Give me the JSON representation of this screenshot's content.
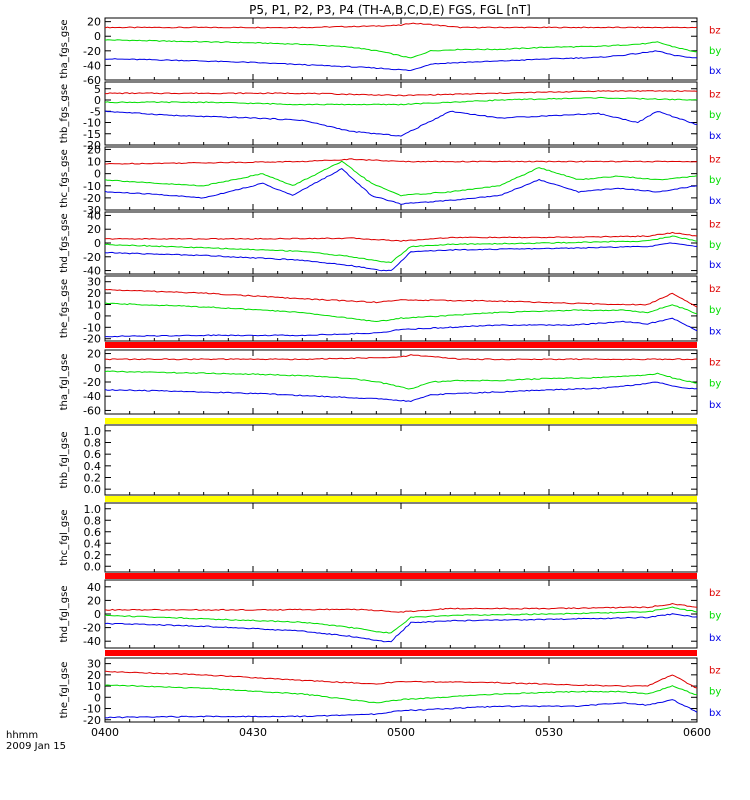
{
  "title": "P5, P1, P2, P3, P4 (TH-A,B,C,D,E) FGS, FGL [nT]",
  "colors": {
    "bx": "#0000e6",
    "by": "#00dd00",
    "bz": "#dd0000",
    "bar_red": "#ff0000",
    "bar_yellow": "#ffff00",
    "axis": "#000000"
  },
  "footer": {
    "x_unit": "hhmm",
    "date": "2009 Jan 15"
  },
  "chart_data": [
    {
      "type": "line",
      "ylabel": "tha_fgs_gse",
      "ylim": [
        -60,
        25
      ],
      "yticks": [
        "20",
        "0",
        "-20",
        "-40",
        "-60"
      ],
      "xlim": [
        0,
        120
      ],
      "xticks": [
        "0400",
        "0430",
        "0500",
        "0530",
        "0600"
      ],
      "series": [
        {
          "name": "bz",
          "x": [
            0,
            15,
            30,
            40,
            55,
            60,
            62,
            66,
            72,
            80,
            90,
            100,
            110,
            115,
            120
          ],
          "values": [
            12,
            12,
            12,
            12,
            14,
            15,
            18,
            16,
            12,
            12,
            12,
            12,
            12,
            12,
            12
          ]
        },
        {
          "name": "by",
          "x": [
            0,
            15,
            30,
            40,
            50,
            56,
            60,
            62,
            66,
            72,
            80,
            90,
            100,
            105,
            110,
            112,
            115,
            120
          ],
          "values": [
            -5,
            -7,
            -9,
            -11,
            -15,
            -21,
            -27,
            -30,
            -20,
            -18,
            -18,
            -15,
            -14,
            -12,
            -10,
            -8,
            -14,
            -22
          ]
        },
        {
          "name": "bx",
          "x": [
            0,
            15,
            30,
            40,
            50,
            56,
            60,
            62,
            66,
            72,
            80,
            90,
            100,
            105,
            110,
            112,
            115,
            120
          ],
          "values": [
            -31,
            -33,
            -36,
            -39,
            -42,
            -44,
            -46,
            -47,
            -38,
            -36,
            -34,
            -31,
            -29,
            -26,
            -22,
            -20,
            -26,
            -30
          ]
        }
      ]
    },
    {
      "type": "line",
      "ylabel": "thb_fgs_gse",
      "ylim": [
        -20,
        8
      ],
      "yticks": [
        "5",
        "0",
        "-5",
        "-10",
        "-15",
        "-20"
      ],
      "xlim": [
        0,
        120
      ],
      "xticks": [
        "0400",
        "0430",
        "0500",
        "0530",
        "0600"
      ],
      "series": [
        {
          "name": "bz",
          "x": [
            0,
            20,
            40,
            60,
            80,
            100,
            120
          ],
          "values": [
            3,
            3,
            3,
            2,
            3,
            4,
            4
          ]
        },
        {
          "name": "by",
          "x": [
            0,
            20,
            40,
            60,
            80,
            100,
            120
          ],
          "values": [
            -1,
            -1,
            -2,
            -2,
            0,
            1,
            0
          ]
        },
        {
          "name": "bx",
          "x": [
            0,
            15,
            30,
            40,
            50,
            60,
            70,
            80,
            90,
            100,
            108,
            112,
            120
          ],
          "values": [
            -5,
            -7,
            -8,
            -9,
            -14,
            -16,
            -5,
            -8,
            -7,
            -6,
            -10,
            -5,
            -11
          ]
        }
      ]
    },
    {
      "type": "line",
      "ylabel": "thc_fgs_gse",
      "ylim": [
        -30,
        22
      ],
      "yticks": [
        "20",
        "10",
        "0",
        "-10",
        "-20",
        "-30"
      ],
      "xlim": [
        0,
        120
      ],
      "xticks": [
        "0400",
        "0430",
        "0500",
        "0530",
        "0600"
      ],
      "series": [
        {
          "name": "bz",
          "x": [
            0,
            20,
            40,
            50,
            60,
            80,
            100,
            120
          ],
          "values": [
            8,
            9,
            10,
            12,
            10,
            10,
            10,
            10
          ]
        },
        {
          "name": "by",
          "x": [
            0,
            10,
            20,
            32,
            38,
            48,
            54,
            60,
            70,
            80,
            88,
            96,
            104,
            112,
            120
          ],
          "values": [
            -5,
            -8,
            -10,
            0,
            -10,
            10,
            -8,
            -18,
            -15,
            -10,
            5,
            -5,
            -2,
            -5,
            -2
          ]
        },
        {
          "name": "bx",
          "x": [
            0,
            10,
            20,
            32,
            38,
            48,
            54,
            60,
            70,
            80,
            88,
            96,
            104,
            112,
            120
          ],
          "values": [
            -15,
            -17,
            -20,
            -8,
            -18,
            4,
            -18,
            -25,
            -22,
            -18,
            -5,
            -15,
            -12,
            -15,
            -10
          ]
        }
      ]
    },
    {
      "type": "line",
      "ylabel": "thd_fgs_gse",
      "ylim": [
        -45,
        45
      ],
      "yticks": [
        "40",
        "20",
        "0",
        "-20",
        "-40"
      ],
      "xlim": [
        0,
        120
      ],
      "xticks": [
        "0400",
        "0430",
        "0500",
        "0530",
        "0600"
      ],
      "series": [
        {
          "name": "bz",
          "x": [
            0,
            30,
            50,
            60,
            70,
            90,
            110,
            115,
            120
          ],
          "values": [
            6,
            6,
            7,
            3,
            8,
            8,
            10,
            15,
            10
          ]
        },
        {
          "name": "by",
          "x": [
            0,
            20,
            40,
            50,
            56,
            58,
            62,
            70,
            90,
            110,
            115,
            120
          ],
          "values": [
            -2,
            -7,
            -12,
            -20,
            -27,
            -28,
            -5,
            -2,
            0,
            3,
            10,
            3
          ]
        },
        {
          "name": "bx",
          "x": [
            0,
            20,
            40,
            50,
            56,
            58,
            62,
            70,
            90,
            110,
            115,
            120
          ],
          "values": [
            -14,
            -18,
            -25,
            -33,
            -40,
            -40,
            -13,
            -10,
            -8,
            -5,
            0,
            -5
          ]
        }
      ]
    },
    {
      "type": "line",
      "ylabel": "the_fgs_gse",
      "ylim": [
        -22,
        35
      ],
      "yticks": [
        "30",
        "20",
        "10",
        "0",
        "-10",
        "-20"
      ],
      "xlim": [
        0,
        120
      ],
      "xticks": [
        "0400",
        "0430",
        "0500",
        "0530",
        "0600"
      ],
      "series": [
        {
          "name": "bz",
          "x": [
            0,
            20,
            40,
            55,
            60,
            80,
            95,
            105,
            110,
            115,
            120
          ],
          "values": [
            23,
            20,
            15,
            12,
            14,
            13,
            11,
            10,
            10,
            20,
            8
          ]
        },
        {
          "name": "by",
          "x": [
            0,
            20,
            40,
            55,
            60,
            80,
            95,
            105,
            110,
            115,
            120
          ],
          "values": [
            11,
            8,
            3,
            -5,
            -2,
            3,
            5,
            5,
            3,
            10,
            2
          ]
        },
        {
          "name": "bx",
          "x": [
            0,
            20,
            40,
            55,
            60,
            80,
            95,
            105,
            110,
            115,
            120
          ],
          "values": [
            -18,
            -17,
            -17,
            -15,
            -12,
            -8,
            -8,
            -5,
            -7,
            -2,
            -13
          ]
        }
      ]
    },
    {
      "type": "line",
      "ylabel": "tha_fgl_gse",
      "ylim": [
        -65,
        25
      ],
      "yticks": [
        "20",
        "0",
        "-20",
        "-40",
        "-60"
      ],
      "xlim": [
        0,
        120
      ],
      "xticks": [
        "0400",
        "0430",
        "0500",
        "0530",
        "0600"
      ],
      "series": [
        {
          "name": "bz",
          "x": [
            0,
            15,
            30,
            40,
            55,
            60,
            62,
            66,
            72,
            80,
            90,
            100,
            110,
            115,
            120
          ],
          "values": [
            12,
            12,
            12,
            12,
            14,
            15,
            18,
            16,
            12,
            12,
            12,
            12,
            12,
            12,
            12
          ]
        },
        {
          "name": "by",
          "x": [
            0,
            15,
            30,
            40,
            50,
            56,
            60,
            62,
            66,
            72,
            80,
            90,
            100,
            105,
            110,
            112,
            115,
            120
          ],
          "values": [
            -5,
            -7,
            -9,
            -11,
            -15,
            -21,
            -27,
            -30,
            -20,
            -18,
            -18,
            -15,
            -14,
            -12,
            -10,
            -8,
            -14,
            -22
          ]
        },
        {
          "name": "bx",
          "x": [
            0,
            15,
            30,
            40,
            50,
            56,
            60,
            62,
            66,
            72,
            80,
            90,
            100,
            105,
            110,
            112,
            115,
            120
          ],
          "values": [
            -31,
            -33,
            -36,
            -39,
            -42,
            -44,
            -46,
            -47,
            -38,
            -36,
            -34,
            -31,
            -29,
            -26,
            -22,
            -20,
            -26,
            -30
          ]
        }
      ]
    },
    {
      "type": "line",
      "ylabel": "thb_fgl_gse",
      "ylim": [
        -0.1,
        1.1
      ],
      "yticks": [
        "1.0",
        "0.8",
        "0.6",
        "0.4",
        "0.2",
        "0.0"
      ],
      "xlim": [
        0,
        120
      ],
      "xticks": [
        "0400",
        "0430",
        "0500",
        "0530",
        "0600"
      ],
      "series": []
    },
    {
      "type": "line",
      "ylabel": "thc_fgl_gse",
      "ylim": [
        -0.1,
        1.1
      ],
      "yticks": [
        "1.0",
        "0.8",
        "0.6",
        "0.4",
        "0.2",
        "0.0"
      ],
      "xlim": [
        0,
        120
      ],
      "xticks": [
        "0400",
        "0430",
        "0500",
        "0530",
        "0600"
      ],
      "series": []
    },
    {
      "type": "line",
      "ylabel": "thd_fgl_gse",
      "ylim": [
        -50,
        50
      ],
      "yticks": [
        "40",
        "20",
        "0",
        "-20",
        "-40"
      ],
      "xlim": [
        0,
        120
      ],
      "xticks": [
        "0400",
        "0430",
        "0500",
        "0530",
        "0600"
      ],
      "series": [
        {
          "name": "bz",
          "x": [
            0,
            30,
            50,
            60,
            70,
            90,
            110,
            115,
            120
          ],
          "values": [
            6,
            6,
            7,
            3,
            8,
            8,
            10,
            15,
            10
          ]
        },
        {
          "name": "by",
          "x": [
            0,
            20,
            40,
            50,
            56,
            58,
            62,
            70,
            90,
            110,
            115,
            120
          ],
          "values": [
            -2,
            -7,
            -12,
            -20,
            -27,
            -28,
            -5,
            -2,
            0,
            3,
            10,
            3
          ]
        },
        {
          "name": "bx",
          "x": [
            0,
            20,
            40,
            50,
            56,
            58,
            62,
            70,
            90,
            110,
            115,
            120
          ],
          "values": [
            -14,
            -18,
            -25,
            -33,
            -40,
            -40,
            -13,
            -10,
            -8,
            -5,
            0,
            -5
          ]
        }
      ]
    },
    {
      "type": "line",
      "ylabel": "the_fgl_gse",
      "ylim": [
        -22,
        35
      ],
      "yticks": [
        "30",
        "20",
        "10",
        "0",
        "-10",
        "-20"
      ],
      "xlim": [
        0,
        120
      ],
      "xticks": [
        "0400",
        "0430",
        "0500",
        "0530",
        "0600"
      ],
      "series": [
        {
          "name": "bz",
          "x": [
            0,
            20,
            40,
            55,
            60,
            80,
            95,
            105,
            110,
            115,
            120
          ],
          "values": [
            23,
            20,
            15,
            12,
            14,
            13,
            11,
            10,
            10,
            20,
            8
          ]
        },
        {
          "name": "by",
          "x": [
            0,
            20,
            40,
            55,
            60,
            80,
            95,
            105,
            110,
            115,
            120
          ],
          "values": [
            11,
            8,
            3,
            -5,
            -2,
            3,
            5,
            5,
            3,
            10,
            2
          ]
        },
        {
          "name": "bx",
          "x": [
            0,
            20,
            40,
            55,
            60,
            80,
            95,
            105,
            110,
            115,
            120
          ],
          "values": [
            -18,
            -17,
            -17,
            -15,
            -12,
            -8,
            -8,
            -5,
            -7,
            -2,
            -13
          ]
        }
      ]
    }
  ],
  "mode_bars": [
    {
      "after_panel": 4,
      "color": "red"
    },
    {
      "after_panel": 5,
      "color": "yellow"
    },
    {
      "after_panel": 6,
      "color": "yellow"
    },
    {
      "after_panel": 7,
      "color": "red"
    },
    {
      "after_panel": 8,
      "color": "red"
    }
  ]
}
